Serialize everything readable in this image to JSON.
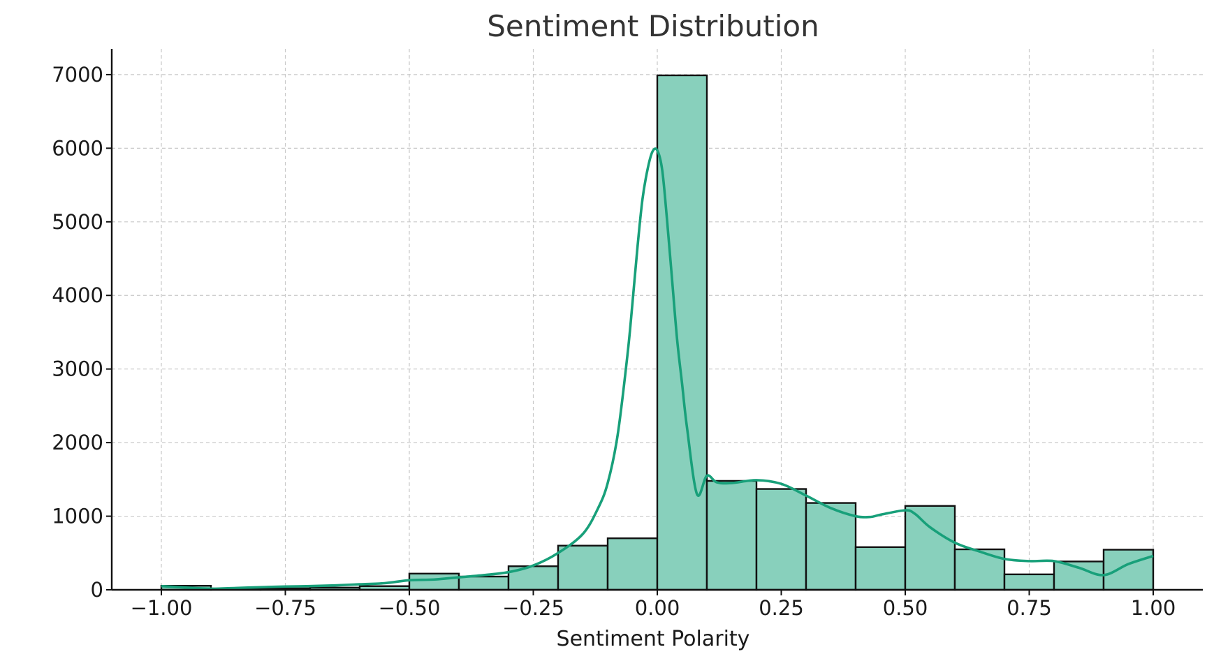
{
  "chart_data": {
    "type": "bar",
    "title": "Sentiment Distribution",
    "xlabel": "Sentiment Polarity",
    "ylabel": "",
    "xlim": [
      -1.1,
      1.1
    ],
    "ylim": [
      0,
      7350
    ],
    "grid": true,
    "bin_edges": [
      -1.0,
      -0.9,
      -0.8,
      -0.7,
      -0.6,
      -0.5,
      -0.4,
      -0.3,
      -0.2,
      -0.1,
      0.0,
      0.1,
      0.2,
      0.3,
      0.4,
      0.5,
      0.6,
      0.7,
      0.8,
      0.9,
      1.0
    ],
    "values": [
      55,
      10,
      20,
      30,
      50,
      220,
      180,
      320,
      600,
      700,
      6990,
      1480,
      1370,
      1180,
      580,
      1140,
      550,
      210,
      385,
      545
    ],
    "x_ticks": [
      -1.0,
      -0.75,
      -0.5,
      -0.25,
      0.0,
      0.25,
      0.5,
      0.75,
      1.0
    ],
    "x_tick_labels": [
      "−1.00",
      "−0.75",
      "−0.50",
      "−0.25",
      "0.00",
      "0.25",
      "0.50",
      "0.75",
      "1.00"
    ],
    "y_ticks": [
      0,
      1000,
      2000,
      3000,
      4000,
      5000,
      6000,
      7000
    ],
    "y_tick_labels": [
      "0",
      "1000",
      "2000",
      "3000",
      "4000",
      "5000",
      "6000",
      "7000"
    ],
    "kde": {
      "x": [
        -1.0,
        -0.95,
        -0.9,
        -0.85,
        -0.8,
        -0.75,
        -0.7,
        -0.65,
        -0.6,
        -0.55,
        -0.5,
        -0.45,
        -0.4,
        -0.35,
        -0.3,
        -0.25,
        -0.2,
        -0.15,
        -0.12,
        -0.1,
        -0.08,
        -0.06,
        -0.05,
        -0.04,
        -0.03,
        -0.02,
        -0.01,
        0.0,
        0.01,
        0.02,
        0.03,
        0.04,
        0.05,
        0.06,
        0.08,
        0.1,
        0.12,
        0.15,
        0.2,
        0.25,
        0.3,
        0.35,
        0.4,
        0.43,
        0.45,
        0.5,
        0.52,
        0.55,
        0.6,
        0.65,
        0.7,
        0.75,
        0.8,
        0.85,
        0.9,
        0.95,
        1.0
      ],
      "y": [
        50,
        30,
        15,
        25,
        35,
        45,
        50,
        60,
        75,
        90,
        130,
        140,
        170,
        200,
        240,
        330,
        500,
        760,
        1100,
        1450,
        2100,
        3200,
        3900,
        4650,
        5300,
        5700,
        5950,
        5970,
        5700,
        5000,
        4200,
        3400,
        2800,
        2200,
        1300,
        1550,
        1460,
        1450,
        1490,
        1440,
        1280,
        1110,
        1000,
        990,
        1020,
        1080,
        1030,
        850,
        640,
        520,
        420,
        390,
        390,
        300,
        200,
        350,
        460
      ]
    },
    "colors": {
      "bar_fill": "#88d0bc",
      "bar_edge": "#111111",
      "kde_line": "#18a07a",
      "grid": "#c8c8c8",
      "axis": "#111111",
      "title": "#333333"
    }
  }
}
